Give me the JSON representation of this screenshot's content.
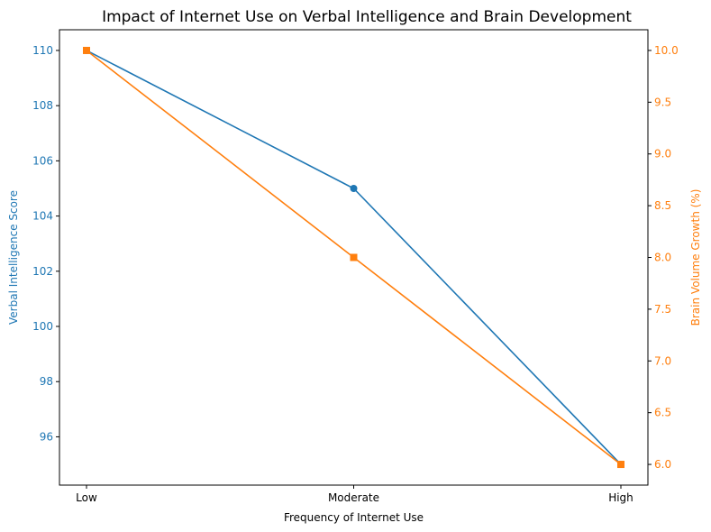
{
  "chart_data": {
    "type": "line",
    "title": "Impact of Internet Use on Verbal Intelligence and Brain Development",
    "xlabel": "Frequency of Internet Use",
    "categories": [
      "Low",
      "Moderate",
      "High"
    ],
    "left_axis": {
      "label": "Verbal Intelligence Score",
      "color": "#1f77b4",
      "ylim": [
        94.25,
        110.75
      ],
      "ticks": [
        "96",
        "98",
        "100",
        "102",
        "104",
        "106",
        "108",
        "110"
      ]
    },
    "right_axis": {
      "label": "Brain Volume Growth (%)",
      "color": "#ff7f0e",
      "ylim": [
        5.8,
        10.2
      ],
      "ticks": [
        "6.0",
        "6.5",
        "7.0",
        "7.5",
        "8.0",
        "8.5",
        "9.0",
        "9.5",
        "10.0"
      ]
    },
    "series": [
      {
        "axis": "left",
        "color": "#1f77b4",
        "marker": "circle",
        "values": [
          110,
          105,
          95
        ]
      },
      {
        "axis": "right",
        "color": "#ff7f0e",
        "marker": "square",
        "values": [
          10,
          8,
          6
        ]
      }
    ],
    "grid": false,
    "legend": "none"
  }
}
